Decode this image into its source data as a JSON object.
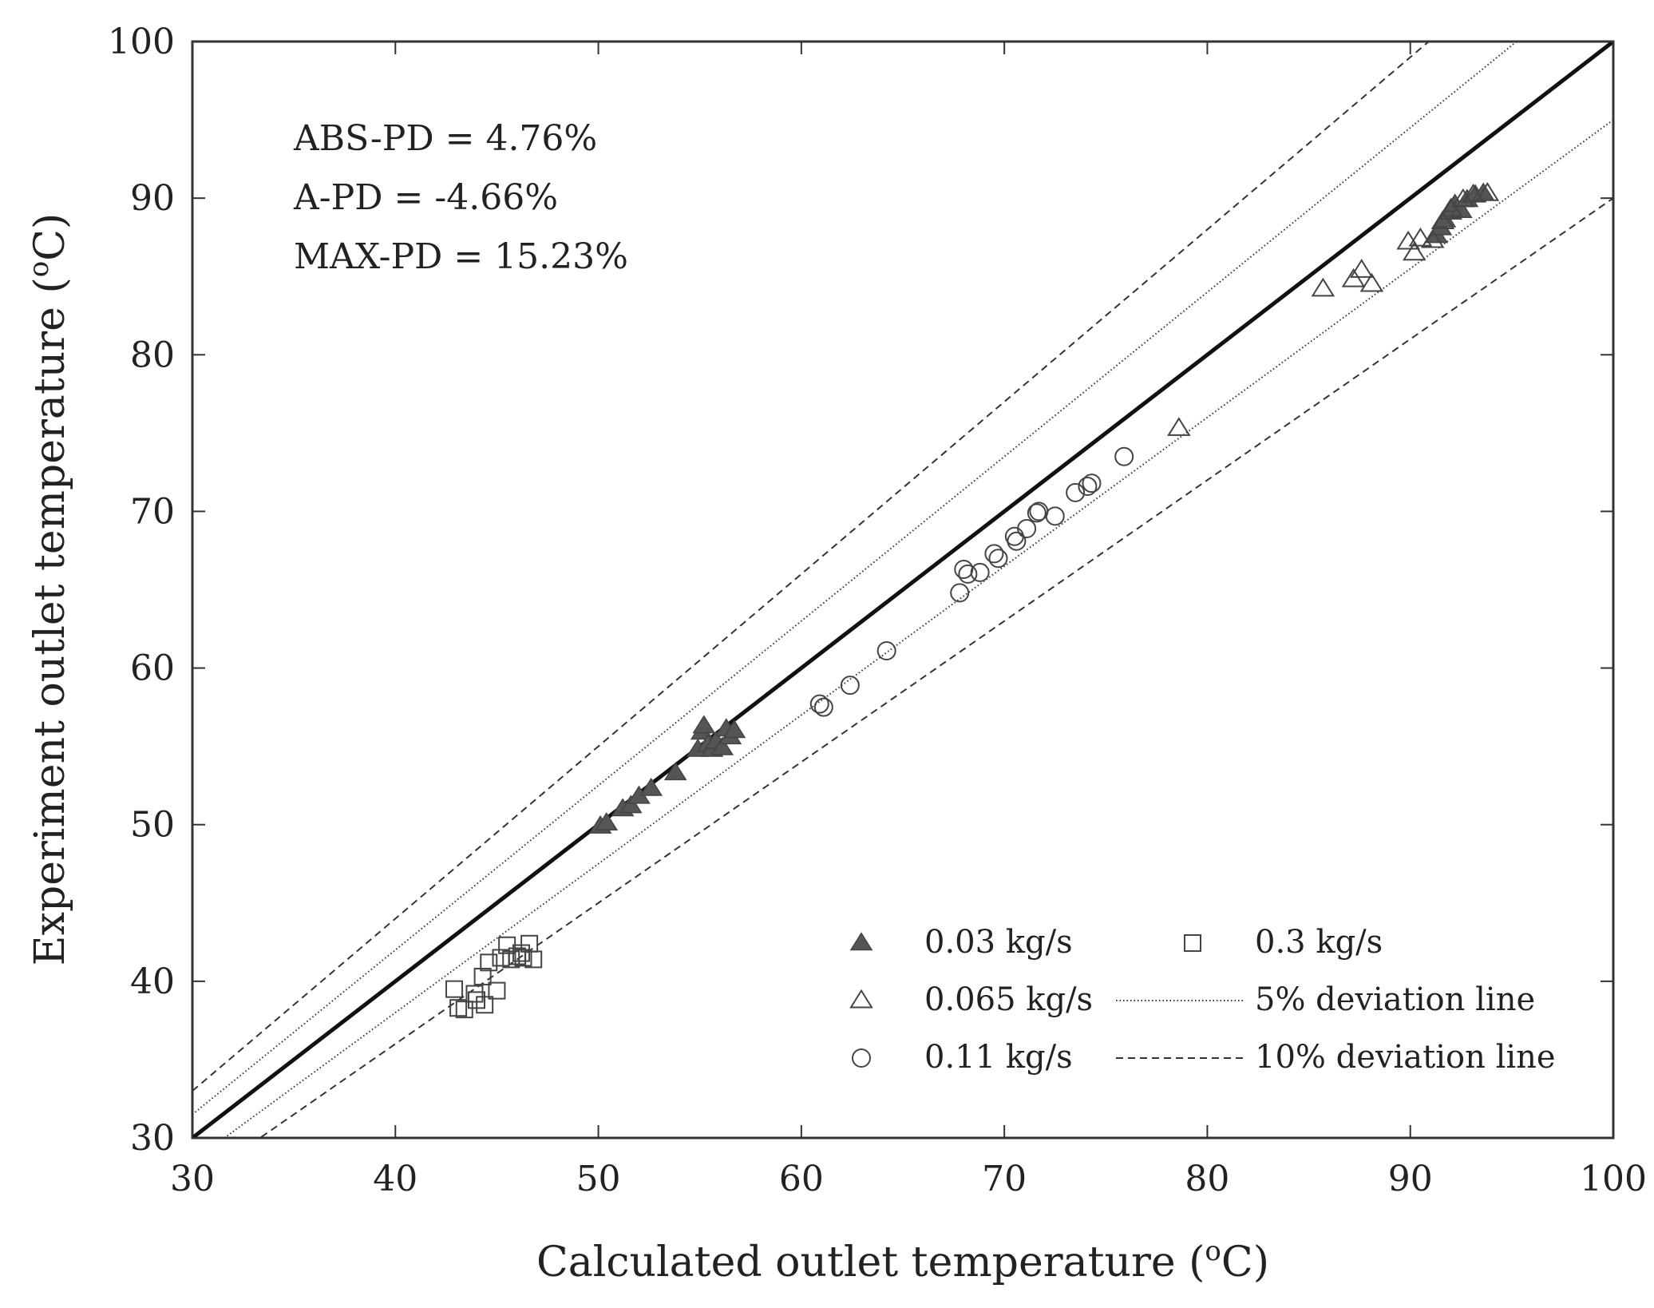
{
  "chart_data": {
    "type": "scatter",
    "title": "",
    "xlabel": "Calculated outlet temperature (",
    "ylabel": "Experiment outlet temperature (",
    "unit_superscript": "o",
    "unit_suffix": "C)",
    "xlim": [
      30,
      100
    ],
    "ylim": [
      30,
      100
    ],
    "xticks": [
      30,
      40,
      50,
      60,
      70,
      80,
      90,
      100
    ],
    "yticks": [
      30,
      40,
      50,
      60,
      70,
      80,
      90,
      100
    ],
    "grid": false,
    "stats": [
      "ABS-PD = 4.76%",
      "A-PD = -4.66%",
      "MAX-PD = 15.23%"
    ],
    "legend_position": "bottom-right",
    "series": [
      {
        "name": "0.03 kg/s",
        "marker": "triangle-filled",
        "points": [
          [
            50.1,
            49.9
          ],
          [
            50.4,
            50.1
          ],
          [
            51.2,
            51.0
          ],
          [
            51.6,
            51.2
          ],
          [
            52.0,
            51.8
          ],
          [
            52.6,
            52.3
          ],
          [
            53.8,
            53.3
          ],
          [
            54.9,
            54.8
          ],
          [
            55.1,
            55.9
          ],
          [
            55.2,
            56.3
          ],
          [
            55.4,
            55.1
          ],
          [
            55.6,
            54.8
          ],
          [
            55.8,
            55.3
          ],
          [
            56.1,
            54.9
          ],
          [
            56.3,
            56.1
          ],
          [
            56.5,
            55.6
          ],
          [
            56.7,
            56.0
          ],
          [
            91.3,
            87.6
          ],
          [
            91.5,
            88.1
          ],
          [
            91.7,
            88.6
          ],
          [
            92.0,
            89.1
          ],
          [
            92.2,
            89.6
          ],
          [
            92.5,
            89.2
          ],
          [
            92.8,
            89.9
          ],
          [
            93.2,
            90.2
          ],
          [
            93.6,
            90.3
          ]
        ]
      },
      {
        "name": "0.065 kg/s",
        "marker": "triangle-open",
        "points": [
          [
            78.6,
            75.3
          ],
          [
            85.7,
            84.2
          ],
          [
            87.2,
            84.8
          ],
          [
            87.6,
            85.4
          ],
          [
            88.1,
            84.5
          ],
          [
            89.9,
            87.2
          ],
          [
            90.2,
            86.5
          ],
          [
            90.5,
            87.4
          ],
          [
            91.1,
            87.3
          ],
          [
            91.6,
            88.5
          ],
          [
            92.0,
            89.3
          ],
          [
            92.6,
            89.9
          ],
          [
            93.1,
            90.2
          ],
          [
            93.8,
            90.3
          ]
        ]
      },
      {
        "name": "0.11 kg/s",
        "marker": "circle-open",
        "points": [
          [
            60.9,
            57.7
          ],
          [
            61.1,
            57.5
          ],
          [
            62.4,
            58.9
          ],
          [
            64.2,
            61.1
          ],
          [
            67.8,
            64.8
          ],
          [
            68.0,
            66.3
          ],
          [
            68.2,
            66.0
          ],
          [
            68.8,
            66.1
          ],
          [
            69.5,
            67.3
          ],
          [
            69.7,
            67.0
          ],
          [
            70.5,
            68.4
          ],
          [
            70.6,
            68.1
          ],
          [
            71.1,
            68.9
          ],
          [
            71.6,
            69.9
          ],
          [
            71.7,
            70.0
          ],
          [
            72.5,
            69.7
          ],
          [
            73.5,
            71.2
          ],
          [
            74.1,
            71.6
          ],
          [
            74.3,
            71.8
          ],
          [
            75.9,
            73.5
          ]
        ]
      },
      {
        "name": "0.3 kg/s",
        "marker": "square-open",
        "points": [
          [
            42.9,
            39.5
          ],
          [
            43.1,
            38.3
          ],
          [
            43.4,
            38.2
          ],
          [
            43.9,
            39.2
          ],
          [
            44.0,
            38.8
          ],
          [
            44.3,
            40.3
          ],
          [
            44.4,
            38.5
          ],
          [
            44.6,
            41.2
          ],
          [
            45.0,
            39.4
          ],
          [
            45.2,
            41.5
          ],
          [
            45.5,
            42.3
          ],
          [
            45.7,
            41.4
          ],
          [
            46.0,
            41.6
          ],
          [
            46.2,
            41.8
          ],
          [
            46.3,
            41.5
          ],
          [
            46.6,
            42.4
          ],
          [
            46.8,
            41.4
          ]
        ]
      }
    ],
    "reference_lines": [
      {
        "name": "",
        "kind": "identity",
        "slope": 1.0,
        "style": "solid-thick"
      },
      {
        "name": "5% deviation line",
        "kind": "deviation",
        "slopes": [
          1.05,
          0.95
        ],
        "style": "dotted"
      },
      {
        "name": "10% deviation line",
        "kind": "deviation",
        "slopes": [
          1.1,
          0.9
        ],
        "style": "dashed"
      }
    ]
  },
  "colors": {
    "frame": "#333333",
    "text": "#222222",
    "marker_fill": "#555555",
    "marker_stroke": "#444444",
    "identity_line": "#111111",
    "deviation_line": "#333333"
  }
}
